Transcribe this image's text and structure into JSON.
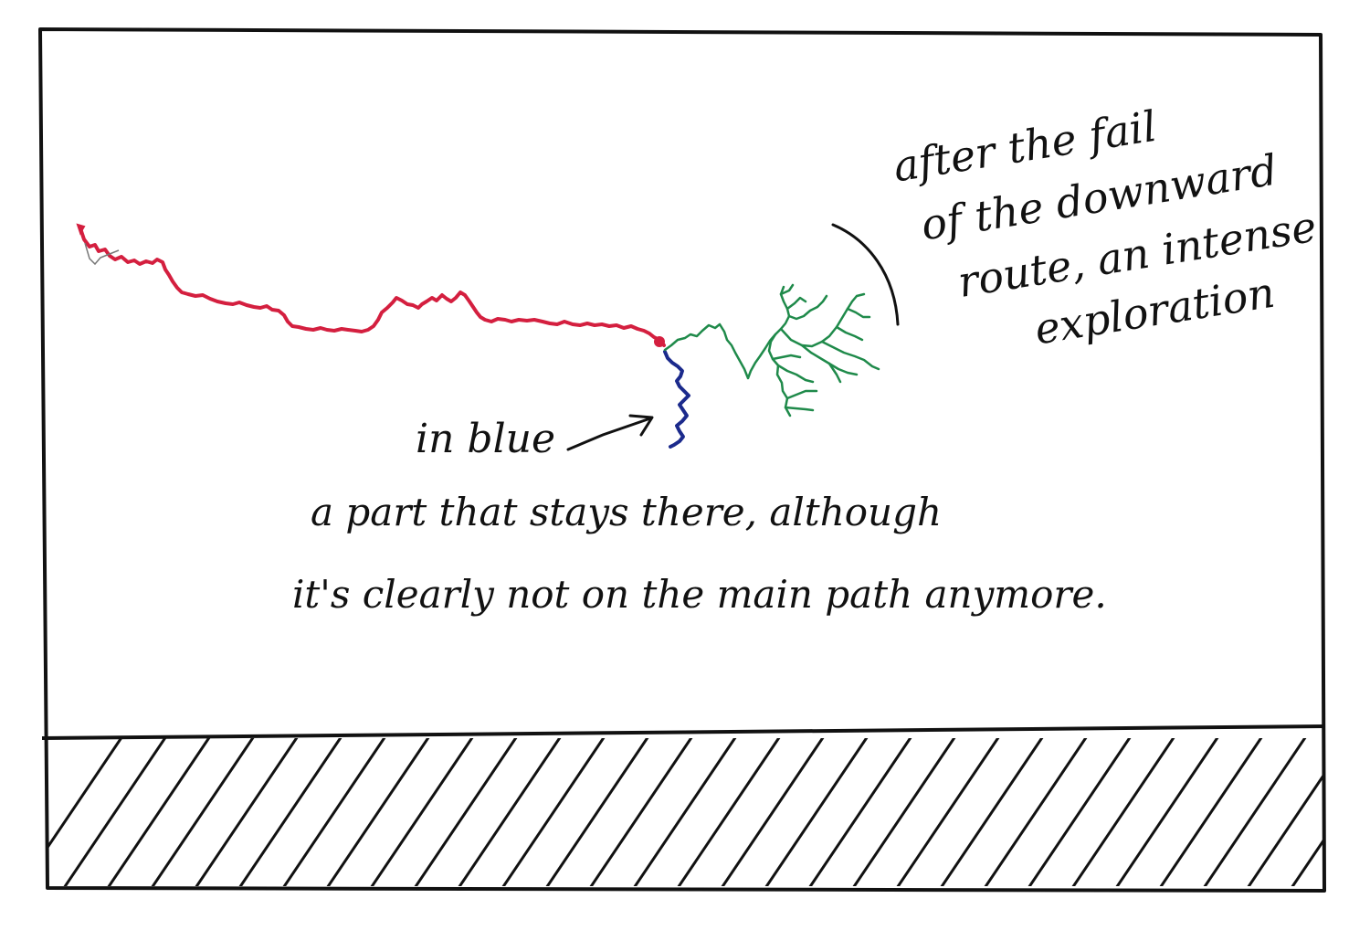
{
  "colors": {
    "ink": "#111111",
    "main_path": "#d41f3f",
    "blue_branch": "#1b2a8c",
    "exploration": "#1f8a4a",
    "background": "#ffffff"
  },
  "annotations": {
    "exploration": {
      "line1": "after the fail",
      "line2": "of the downward",
      "line3": "route, an intense",
      "line4": "exploration"
    },
    "blue": {
      "label": "in blue",
      "line1": "a part that stays there, although",
      "line2": "it's clearly not on the main path anymore."
    }
  }
}
